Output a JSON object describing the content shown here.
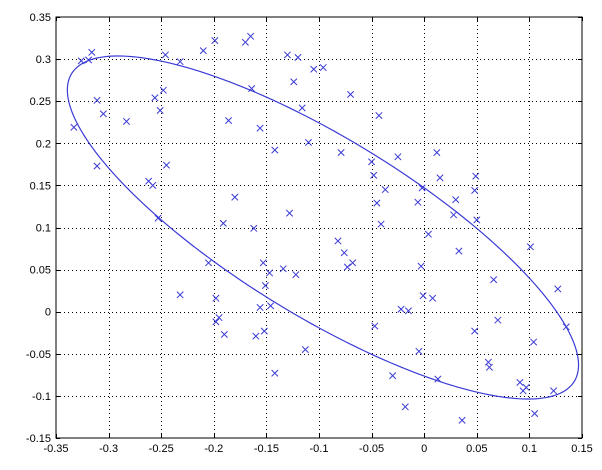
{
  "chart_data": {
    "type": "scatter",
    "title": "",
    "xlabel": "",
    "ylabel": "",
    "xlim": [
      -0.35,
      0.15
    ],
    "ylim": [
      -0.15,
      0.35
    ],
    "xticks": [
      -0.35,
      -0.3,
      -0.25,
      -0.2,
      -0.15,
      -0.1,
      -0.05,
      0,
      0.05,
      0.1,
      0.15
    ],
    "yticks": [
      -0.15,
      -0.1,
      -0.05,
      0,
      0.05,
      0.1,
      0.15,
      0.2,
      0.25,
      0.3,
      0.35
    ],
    "xtick_labels": [
      "-0.35",
      "-0.3",
      "-0.25",
      "-0.2",
      "-0.15",
      "-0.1",
      "-0.05",
      "0",
      "0.05",
      "0.1",
      "0.15"
    ],
    "ytick_labels": [
      "-0.15",
      "-0.1",
      "-0.05",
      "0",
      "0.05",
      "0.1",
      "0.15",
      "0.2",
      "0.25",
      "0.3",
      "0.35"
    ],
    "grid": "dotted",
    "marker": "x",
    "color": "#3b3bd6",
    "points": [
      [
        -0.333,
        0.219
      ],
      [
        -0.326,
        0.298
      ],
      [
        -0.319,
        0.299
      ],
      [
        -0.316,
        0.308
      ],
      [
        -0.311,
        0.251
      ],
      [
        -0.311,
        0.173
      ],
      [
        -0.305,
        0.235
      ],
      [
        -0.283,
        0.226
      ],
      [
        -0.262,
        0.155
      ],
      [
        -0.258,
        0.15
      ],
      [
        -0.256,
        0.254
      ],
      [
        -0.253,
        0.111
      ],
      [
        -0.251,
        0.239
      ],
      [
        -0.248,
        0.263
      ],
      [
        -0.246,
        0.305
      ],
      [
        -0.245,
        0.174
      ],
      [
        -0.232,
        0.297
      ],
      [
        -0.232,
        0.02
      ],
      [
        -0.21,
        0.31
      ],
      [
        -0.205,
        0.058
      ],
      [
        -0.199,
        0.322
      ],
      [
        -0.198,
        0.016
      ],
      [
        -0.198,
        -0.012
      ],
      [
        -0.195,
        -0.007
      ],
      [
        -0.191,
        0.105
      ],
      [
        -0.19,
        -0.027
      ],
      [
        -0.186,
        0.227
      ],
      [
        -0.18,
        0.136
      ],
      [
        -0.17,
        0.32
      ],
      [
        -0.165,
        0.327
      ],
      [
        -0.164,
        0.265
      ],
      [
        -0.162,
        0.099
      ],
      [
        -0.16,
        -0.029
      ],
      [
        -0.156,
        0.218
      ],
      [
        -0.156,
        0.005
      ],
      [
        -0.153,
        0.058
      ],
      [
        -0.152,
        -0.023
      ],
      [
        -0.151,
        0.031
      ],
      [
        -0.147,
        0.046
      ],
      [
        -0.146,
        0.007
      ],
      [
        -0.142,
        0.192
      ],
      [
        -0.142,
        -0.073
      ],
      [
        -0.134,
        0.051
      ],
      [
        -0.13,
        0.305
      ],
      [
        -0.128,
        0.117
      ],
      [
        -0.124,
        0.273
      ],
      [
        -0.122,
        0.044
      ],
      [
        -0.12,
        0.302
      ],
      [
        -0.116,
        0.242
      ],
      [
        -0.113,
        -0.045
      ],
      [
        -0.11,
        0.201
      ],
      [
        -0.105,
        0.288
      ],
      [
        -0.096,
        0.29
      ],
      [
        -0.082,
        0.084
      ],
      [
        -0.079,
        0.189
      ],
      [
        -0.076,
        0.07
      ],
      [
        -0.073,
        0.053
      ],
      [
        -0.07,
        0.258
      ],
      [
        -0.068,
        0.058
      ],
      [
        -0.05,
        0.178
      ],
      [
        -0.048,
        0.162
      ],
      [
        -0.047,
        -0.017
      ],
      [
        -0.045,
        0.129
      ],
      [
        -0.043,
        0.233
      ],
      [
        -0.041,
        0.104
      ],
      [
        -0.037,
        0.145
      ],
      [
        -0.03,
        -0.076
      ],
      [
        -0.025,
        0.184
      ],
      [
        -0.022,
        0.003
      ],
      [
        -0.018,
        -0.113
      ],
      [
        -0.015,
        0.001
      ],
      [
        -0.006,
        0.13
      ],
      [
        -0.005,
        -0.047
      ],
      [
        -0.003,
        0.054
      ],
      [
        -0.002,
        0.147
      ],
      [
        -0.001,
        0.019
      ],
      [
        0.004,
        0.092
      ],
      [
        0.008,
        0.016
      ],
      [
        0.012,
        0.189
      ],
      [
        0.013,
        -0.08
      ],
      [
        0.015,
        0.159
      ],
      [
        0.028,
        0.115
      ],
      [
        0.03,
        0.133
      ],
      [
        0.033,
        0.072
      ],
      [
        0.036,
        -0.129
      ],
      [
        0.048,
        0.144
      ],
      [
        0.049,
        0.161
      ],
      [
        0.048,
        -0.023
      ],
      [
        0.05,
        0.109
      ],
      [
        0.061,
        -0.06
      ],
      [
        0.062,
        -0.066
      ],
      [
        0.066,
        0.038
      ],
      [
        0.07,
        -0.01
      ],
      [
        0.091,
        -0.084
      ],
      [
        0.094,
        -0.094
      ],
      [
        0.097,
        -0.09
      ],
      [
        0.101,
        0.077
      ],
      [
        0.104,
        -0.036
      ],
      [
        0.105,
        -0.121
      ],
      [
        0.123,
        -0.094
      ],
      [
        0.127,
        0.027
      ],
      [
        0.135,
        -0.018
      ]
    ],
    "ellipse": {
      "center": [
        -0.09625,
        0.1
      ],
      "semi_major": 0.3015,
      "semi_minor": 0.0981,
      "angle_deg": -38.77
    }
  }
}
